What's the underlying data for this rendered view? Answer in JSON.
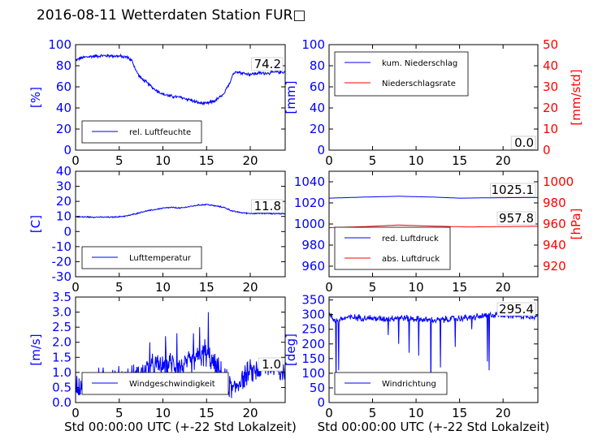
{
  "figure_title": "2016-08-11 Wetterdaten Station FUR□",
  "colors": {
    "blue": "#0000ff",
    "red": "#ff0000",
    "black": "#000000"
  },
  "chart_data": [
    {
      "id": "humidity",
      "type": "line",
      "ylabel": "[%]",
      "ylabel_color": "blue",
      "xlim": [
        0,
        24
      ],
      "ylim": [
        0,
        100
      ],
      "xticks": [
        0,
        5,
        10,
        15,
        20
      ],
      "yticks": [
        0,
        20,
        40,
        60,
        80,
        100
      ],
      "legend": {
        "placement": "lower-left",
        "entries": [
          {
            "label": "rel. Luftfeuchte",
            "color": "blue"
          }
        ]
      },
      "value_labels": [
        "74.2"
      ],
      "series": [
        {
          "name": "rel. Luftfeuchte",
          "color": "blue",
          "noise": 2.0,
          "points": [
            [
              0,
              85
            ],
            [
              0.5,
              87
            ],
            [
              1,
              88
            ],
            [
              2,
              89
            ],
            [
              3,
              89.5
            ],
            [
              4,
              89.5
            ],
            [
              5,
              89
            ],
            [
              6,
              88
            ],
            [
              6.5,
              84
            ],
            [
              7,
              74
            ],
            [
              7.5,
              68
            ],
            [
              8,
              65
            ],
            [
              9,
              58
            ],
            [
              10,
              53
            ],
            [
              11,
              51
            ],
            [
              12,
              50
            ],
            [
              13,
              48
            ],
            [
              14,
              45
            ],
            [
              15,
              44
            ],
            [
              16,
              47
            ],
            [
              17,
              53
            ],
            [
              17.7,
              65
            ],
            [
              18,
              72
            ],
            [
              18.5,
              75
            ],
            [
              19,
              73
            ],
            [
              20,
              72
            ],
            [
              21,
              73
            ],
            [
              22,
              73
            ],
            [
              23,
              74
            ],
            [
              24,
              74
            ]
          ]
        }
      ]
    },
    {
      "id": "rain",
      "type": "line",
      "ylabel": "[mm]",
      "ylabel_color": "blue",
      "y2label": "[mm/std]",
      "y2label_color": "red",
      "xlim": [
        0,
        24
      ],
      "ylim": [
        0,
        100
      ],
      "y2lim": [
        0,
        50
      ],
      "xticks": [
        0,
        5,
        10,
        15,
        20
      ],
      "yticks": [
        0,
        20,
        40,
        60,
        80,
        100
      ],
      "y2ticks": [
        0,
        10,
        20,
        30,
        40,
        50
      ],
      "legend": {
        "placement": "upper-left",
        "entries": [
          {
            "label": "kum. Niederschlag",
            "color": "blue"
          },
          {
            "label": "Niederschlagsrate",
            "color": "red"
          }
        ]
      },
      "value_labels": [
        "0.0",
        "0.0"
      ],
      "series": [
        {
          "name": "kum. Niederschlag",
          "color": "blue",
          "axis": "left",
          "points": [
            [
              0,
              0
            ],
            [
              24,
              0
            ]
          ]
        },
        {
          "name": "Niederschlagsrate",
          "color": "red",
          "axis": "right",
          "points": [
            [
              0,
              0
            ],
            [
              24,
              0
            ]
          ]
        }
      ]
    },
    {
      "id": "temperature",
      "type": "line",
      "ylabel": "[C]",
      "ylabel_color": "blue",
      "xlim": [
        0,
        24
      ],
      "ylim": [
        -30,
        40
      ],
      "xticks": [
        0,
        5,
        10,
        15,
        20
      ],
      "yticks": [
        -30,
        -20,
        -10,
        0,
        10,
        20,
        30,
        40
      ],
      "legend": {
        "placement": "lower-left",
        "entries": [
          {
            "label": "Lufttemperatur",
            "color": "blue"
          }
        ]
      },
      "value_labels": [
        "11.8"
      ],
      "series": [
        {
          "name": "Lufttemperatur",
          "color": "blue",
          "noise": 0.5,
          "points": [
            [
              0,
              9.8
            ],
            [
              2,
              9.6
            ],
            [
              4,
              9.5
            ],
            [
              5,
              9.8
            ],
            [
              6,
              10.5
            ],
            [
              7,
              12
            ],
            [
              8,
              13.5
            ],
            [
              9,
              14.5
            ],
            [
              10,
              15.5
            ],
            [
              11,
              16
            ],
            [
              12,
              15.5
            ],
            [
              13,
              16.5
            ],
            [
              14,
              17.5
            ],
            [
              15,
              18
            ],
            [
              16,
              17
            ],
            [
              17,
              16
            ],
            [
              18,
              13.5
            ],
            [
              19,
              12.5
            ],
            [
              20,
              12
            ],
            [
              22,
              12
            ],
            [
              23,
              11.9
            ],
            [
              24,
              11.8
            ]
          ]
        }
      ]
    },
    {
      "id": "pressure",
      "type": "line",
      "y2label": "[hPa]",
      "y2label_color": "red",
      "xlim": [
        0,
        24
      ],
      "ylim": [
        950,
        1050
      ],
      "y2lim": [
        910,
        1010
      ],
      "xticks": [
        0,
        5,
        10,
        15,
        20
      ],
      "yticks": [
        960,
        980,
        1000,
        1020,
        1040
      ],
      "y2ticks": [
        920,
        940,
        960,
        980,
        1000
      ],
      "legend": {
        "placement": "lower-left",
        "entries": [
          {
            "label": "red. Luftdruck",
            "color": "blue"
          },
          {
            "label": "abs. Luftdruck",
            "color": "red"
          }
        ]
      },
      "value_labels": [
        "1025.1",
        "957.8"
      ],
      "series": [
        {
          "name": "red. Luftdruck",
          "color": "blue",
          "axis": "left",
          "points": [
            [
              0,
              1024.5
            ],
            [
              4,
              1025.5
            ],
            [
              8,
              1026.3
            ],
            [
              12,
              1025.5
            ],
            [
              15,
              1024.5
            ],
            [
              18,
              1024.8
            ],
            [
              21,
              1025
            ],
            [
              24,
              1025.1
            ]
          ]
        },
        {
          "name": "abs. Luftdruck",
          "color": "red",
          "axis": "right",
          "points": [
            [
              0,
              956.5
            ],
            [
              4,
              957.5
            ],
            [
              8,
              959
            ],
            [
              12,
              958
            ],
            [
              16,
              957.2
            ],
            [
              20,
              957.5
            ],
            [
              24,
              957.8
            ]
          ]
        }
      ]
    },
    {
      "id": "wind",
      "type": "line",
      "ylabel": "[m/s]",
      "ylabel_color": "blue",
      "xlabel": "Std 00:00:00 UTC (+-22 Std Lokalzeit)",
      "xlim": [
        0,
        24
      ],
      "ylim": [
        0,
        3.5
      ],
      "xticks": [
        0,
        5,
        10,
        15,
        20
      ],
      "yticks": [
        0.0,
        0.5,
        1.0,
        1.5,
        2.0,
        2.5,
        3.0,
        3.5
      ],
      "legend": {
        "placement": "lower-left",
        "entries": [
          {
            "label": "Windgeschwindigkeit",
            "color": "blue"
          }
        ]
      },
      "value_labels": [
        "1.0"
      ],
      "series": [
        {
          "name": "Windgeschwindigkeit",
          "color": "blue",
          "noise": 0.5,
          "points": [
            [
              0,
              0.6
            ],
            [
              2,
              0.7
            ],
            [
              4,
              0.8
            ],
            [
              6,
              0.8
            ],
            [
              7,
              0.9
            ],
            [
              8,
              1.1
            ],
            [
              9,
              1.2
            ],
            [
              10,
              1.2
            ],
            [
              11,
              1.3
            ],
            [
              12,
              1.2
            ],
            [
              13,
              1.3
            ],
            [
              14,
              1.5
            ],
            [
              15,
              1.6
            ],
            [
              16,
              1.2
            ],
            [
              17,
              0.8
            ],
            [
              18,
              0.4
            ],
            [
              19,
              0.8
            ],
            [
              20,
              1.0
            ],
            [
              21,
              1.1
            ],
            [
              22,
              1.2
            ],
            [
              23,
              1.2
            ],
            [
              24,
              1.0
            ]
          ],
          "spikes": [
            [
              15.2,
              3.0
            ],
            [
              14.2,
              2.5
            ],
            [
              13.5,
              2.3
            ],
            [
              11.6,
              2.3
            ],
            [
              10.3,
              2.2
            ],
            [
              8.5,
              2.0
            ],
            [
              14.8,
              2.1
            ]
          ]
        }
      ]
    },
    {
      "id": "direction",
      "type": "line",
      "ylabel": "[deg]",
      "ylabel_color": "blue",
      "xlabel": "Std 00:00:00 UTC (+-22 Std Lokalzeit)",
      "xlim": [
        0,
        24
      ],
      "ylim": [
        0,
        360
      ],
      "xticks": [
        0,
        5,
        10,
        15,
        20
      ],
      "yticks": [
        0,
        50,
        100,
        150,
        200,
        250,
        300,
        350
      ],
      "legend": {
        "placement": "lower-left",
        "entries": [
          {
            "label": "Windrichtung",
            "color": "blue"
          }
        ]
      },
      "value_labels": [
        "295.4"
      ],
      "series": [
        {
          "name": "Windrichtung",
          "color": "blue",
          "noise": 14,
          "points": [
            [
              0,
              300
            ],
            [
              0.5,
              285
            ],
            [
              1,
              280
            ],
            [
              2,
              290
            ],
            [
              4,
              290
            ],
            [
              6,
              285
            ],
            [
              8,
              290
            ],
            [
              10,
              285
            ],
            [
              12,
              280
            ],
            [
              14,
              285
            ],
            [
              16,
              290
            ],
            [
              18,
              295
            ],
            [
              19,
              300
            ],
            [
              20,
              300
            ],
            [
              22,
              295
            ],
            [
              24,
              295
            ]
          ],
          "spikes": [
            [
              0.8,
              50
            ],
            [
              1.1,
              110
            ],
            [
              9.2,
              170
            ],
            [
              10.3,
              160
            ],
            [
              11.7,
              30
            ],
            [
              12.8,
              120
            ],
            [
              14.5,
              190
            ],
            [
              16.4,
              250
            ],
            [
              18.2,
              140
            ],
            [
              18.4,
              110
            ],
            [
              8,
              200
            ],
            [
              6.8,
              230
            ]
          ]
        }
      ]
    }
  ]
}
